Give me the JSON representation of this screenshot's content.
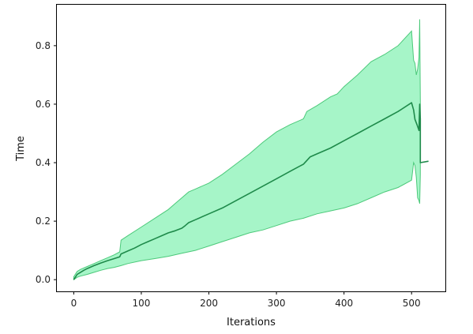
{
  "chart_data": {
    "type": "area",
    "title": "",
    "xlabel": "Iterations",
    "ylabel": "Time",
    "xlim": [
      -25,
      550
    ],
    "ylim": [
      -0.04,
      0.94
    ],
    "xticks": [
      0,
      100,
      200,
      300,
      400,
      500
    ],
    "yticks": [
      0.0,
      0.2,
      0.4,
      0.6,
      0.8
    ],
    "grid": false,
    "colors": {
      "line": "#1e8a4a",
      "band_fill": "#a6f5c8",
      "band_edge": "#4cc97a"
    },
    "series": [
      {
        "kind": "mean_line",
        "x": [
          0,
          5,
          10,
          15,
          20,
          30,
          40,
          50,
          60,
          68,
          70,
          80,
          90,
          100,
          110,
          120,
          130,
          140,
          150,
          160,
          165,
          170,
          180,
          200,
          220,
          240,
          260,
          280,
          300,
          320,
          340,
          350,
          360,
          380,
          400,
          420,
          440,
          460,
          480,
          500,
          503,
          505,
          508,
          511,
          512,
          513,
          513,
          525
        ],
        "y": [
          0.0,
          0.018,
          0.025,
          0.032,
          0.038,
          0.048,
          0.057,
          0.065,
          0.072,
          0.078,
          0.088,
          0.098,
          0.108,
          0.12,
          0.13,
          0.14,
          0.15,
          0.16,
          0.167,
          0.176,
          0.185,
          0.195,
          0.205,
          0.225,
          0.245,
          0.27,
          0.295,
          0.32,
          0.345,
          0.37,
          0.395,
          0.42,
          0.43,
          0.45,
          0.475,
          0.5,
          0.525,
          0.55,
          0.575,
          0.605,
          0.58,
          0.548,
          0.53,
          0.51,
          0.6,
          0.55,
          0.4,
          0.405
        ]
      },
      {
        "kind": "band_upper",
        "x": [
          0,
          5,
          10,
          20,
          30,
          40,
          50,
          60,
          68,
          70,
          80,
          100,
          120,
          140,
          150,
          160,
          170,
          180,
          200,
          220,
          240,
          260,
          280,
          300,
          320,
          340,
          345,
          360,
          380,
          390,
          400,
          420,
          440,
          460,
          480,
          500,
          503,
          505,
          507,
          509,
          511,
          512,
          513
        ],
        "y": [
          0.01,
          0.028,
          0.035,
          0.045,
          0.055,
          0.065,
          0.075,
          0.085,
          0.095,
          0.135,
          0.15,
          0.18,
          0.21,
          0.24,
          0.26,
          0.28,
          0.3,
          0.31,
          0.33,
          0.36,
          0.395,
          0.43,
          0.47,
          0.505,
          0.53,
          0.55,
          0.575,
          0.595,
          0.625,
          0.635,
          0.66,
          0.7,
          0.745,
          0.77,
          0.8,
          0.85,
          0.75,
          0.74,
          0.7,
          0.72,
          0.76,
          0.89,
          0.61
        ]
      },
      {
        "kind": "band_lower",
        "x": [
          0,
          5,
          10,
          20,
          30,
          40,
          50,
          60,
          70,
          80,
          100,
          120,
          140,
          160,
          180,
          200,
          220,
          240,
          260,
          280,
          300,
          320,
          340,
          360,
          380,
          400,
          420,
          440,
          460,
          480,
          500,
          503,
          505,
          507,
          509,
          511,
          512,
          513
        ],
        "y": [
          0.0,
          0.008,
          0.012,
          0.018,
          0.025,
          0.032,
          0.038,
          0.042,
          0.048,
          0.055,
          0.065,
          0.072,
          0.08,
          0.09,
          0.1,
          0.115,
          0.13,
          0.145,
          0.16,
          0.17,
          0.185,
          0.2,
          0.21,
          0.225,
          0.235,
          0.245,
          0.26,
          0.28,
          0.3,
          0.315,
          0.34,
          0.4,
          0.39,
          0.35,
          0.28,
          0.27,
          0.26,
          0.36
        ]
      }
    ]
  }
}
